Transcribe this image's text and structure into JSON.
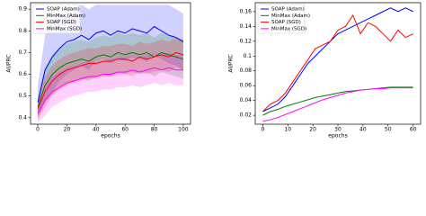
{
  "chart_data": [
    {
      "type": "line",
      "xlabel": "epochs",
      "ylabel": "AUPRC",
      "legend": "upper left",
      "x": [
        0,
        5,
        10,
        15,
        20,
        25,
        30,
        35,
        40,
        45,
        50,
        55,
        60,
        65,
        70,
        75,
        80,
        85,
        90,
        95,
        100
      ],
      "xlim": [
        -5,
        105
      ],
      "xticks": [
        0,
        20,
        40,
        60,
        80,
        100
      ],
      "ylim": [
        0.37,
        0.93
      ],
      "yticks": [
        0.4,
        0.5,
        0.6,
        0.7,
        0.8,
        0.9
      ],
      "series": [
        {
          "name": "SOAP (Adam)",
          "color": "#0000ff",
          "values": [
            0.47,
            0.62,
            0.68,
            0.72,
            0.75,
            0.76,
            0.78,
            0.76,
            0.79,
            0.8,
            0.78,
            0.8,
            0.79,
            0.81,
            0.8,
            0.79,
            0.82,
            0.8,
            0.78,
            0.77,
            0.75
          ],
          "upper": [
            0.55,
            0.78,
            0.85,
            0.87,
            0.9,
            0.9,
            0.92,
            0.9,
            0.92,
            0.92,
            0.92,
            0.92,
            0.92,
            0.92,
            0.92,
            0.92,
            0.92,
            0.92,
            0.92,
            0.9,
            0.88
          ],
          "lower": [
            0.4,
            0.48,
            0.52,
            0.57,
            0.6,
            0.62,
            0.64,
            0.62,
            0.66,
            0.67,
            0.65,
            0.67,
            0.66,
            0.68,
            0.67,
            0.66,
            0.69,
            0.67,
            0.65,
            0.64,
            0.62
          ]
        },
        {
          "name": "MinMax (Adam)",
          "color": "#008000",
          "values": [
            0.45,
            0.55,
            0.6,
            0.63,
            0.65,
            0.66,
            0.67,
            0.66,
            0.68,
            0.69,
            0.68,
            0.7,
            0.69,
            0.7,
            0.69,
            0.7,
            0.68,
            0.7,
            0.69,
            0.68,
            0.67
          ],
          "upper": [
            0.5,
            0.63,
            0.69,
            0.72,
            0.74,
            0.75,
            0.76,
            0.75,
            0.77,
            0.78,
            0.77,
            0.79,
            0.78,
            0.79,
            0.78,
            0.79,
            0.77,
            0.79,
            0.78,
            0.77,
            0.76
          ],
          "lower": [
            0.4,
            0.47,
            0.51,
            0.54,
            0.56,
            0.57,
            0.58,
            0.57,
            0.59,
            0.6,
            0.59,
            0.61,
            0.6,
            0.61,
            0.6,
            0.61,
            0.59,
            0.61,
            0.6,
            0.59,
            0.58
          ]
        },
        {
          "name": "SOAP (SGD)",
          "color": "#ff0000",
          "values": [
            0.44,
            0.52,
            0.57,
            0.6,
            0.62,
            0.63,
            0.64,
            0.65,
            0.65,
            0.66,
            0.66,
            0.67,
            0.67,
            0.66,
            0.68,
            0.67,
            0.68,
            0.69,
            0.68,
            0.7,
            0.69
          ],
          "upper": [
            0.49,
            0.59,
            0.64,
            0.67,
            0.69,
            0.7,
            0.71,
            0.72,
            0.72,
            0.73,
            0.73,
            0.74,
            0.74,
            0.73,
            0.75,
            0.74,
            0.75,
            0.76,
            0.75,
            0.77,
            0.76
          ],
          "lower": [
            0.39,
            0.45,
            0.5,
            0.53,
            0.55,
            0.56,
            0.57,
            0.58,
            0.58,
            0.59,
            0.59,
            0.6,
            0.6,
            0.59,
            0.61,
            0.6,
            0.61,
            0.62,
            0.61,
            0.63,
            0.62
          ]
        },
        {
          "name": "MinMax (SGD)",
          "color": "#ff00ff",
          "values": [
            0.42,
            0.48,
            0.52,
            0.54,
            0.56,
            0.57,
            0.58,
            0.59,
            0.59,
            0.6,
            0.6,
            0.61,
            0.61,
            0.62,
            0.61,
            0.62,
            0.63,
            0.62,
            0.63,
            0.62,
            0.62
          ],
          "upper": [
            0.47,
            0.55,
            0.59,
            0.61,
            0.63,
            0.64,
            0.65,
            0.66,
            0.66,
            0.67,
            0.67,
            0.68,
            0.68,
            0.69,
            0.68,
            0.69,
            0.7,
            0.69,
            0.7,
            0.69,
            0.69
          ],
          "lower": [
            0.38,
            0.41,
            0.45,
            0.47,
            0.49,
            0.5,
            0.51,
            0.52,
            0.52,
            0.53,
            0.53,
            0.54,
            0.54,
            0.55,
            0.54,
            0.55,
            0.56,
            0.55,
            0.56,
            0.55,
            0.55
          ]
        }
      ]
    },
    {
      "type": "line",
      "xlabel": "epochs",
      "ylabel": "AUPRC",
      "legend": "upper left",
      "x": [
        0,
        3,
        6,
        9,
        12,
        15,
        18,
        21,
        24,
        27,
        30,
        33,
        36,
        39,
        42,
        45,
        48,
        51,
        54,
        57,
        60
      ],
      "xlim": [
        -3,
        63
      ],
      "xticks": [
        0,
        10,
        20,
        30,
        40,
        50,
        60
      ],
      "ylim": [
        0.008,
        0.172
      ],
      "yticks": [
        0.02,
        0.04,
        0.06,
        0.08,
        0.1,
        0.12,
        0.14,
        0.16
      ],
      "series": [
        {
          "name": "SOAP (Adam)",
          "color": "#0000ff",
          "values": [
            0.025,
            0.03,
            0.035,
            0.045,
            0.06,
            0.075,
            0.09,
            0.1,
            0.11,
            0.12,
            0.13,
            0.135,
            0.14,
            0.145,
            0.15,
            0.155,
            0.16,
            0.165,
            0.16,
            0.165,
            0.16
          ]
        },
        {
          "name": "MinMax (Adam)",
          "color": "#008000",
          "values": [
            0.02,
            0.025,
            0.028,
            0.032,
            0.035,
            0.038,
            0.041,
            0.044,
            0.046,
            0.048,
            0.05,
            0.052,
            0.053,
            0.054,
            0.055,
            0.056,
            0.057,
            0.058,
            0.058,
            0.058,
            0.058
          ]
        },
        {
          "name": "SOAP (SGD)",
          "color": "#ff0000",
          "values": [
            0.025,
            0.035,
            0.04,
            0.05,
            0.065,
            0.08,
            0.095,
            0.11,
            0.115,
            0.12,
            0.135,
            0.14,
            0.155,
            0.13,
            0.145,
            0.14,
            0.13,
            0.12,
            0.135,
            0.125,
            0.13
          ]
        },
        {
          "name": "MinMax (SGD)",
          "color": "#ff00ff",
          "values": [
            0.012,
            0.014,
            0.017,
            0.021,
            0.025,
            0.029,
            0.033,
            0.037,
            0.041,
            0.044,
            0.047,
            0.05,
            0.052,
            0.054,
            0.055,
            0.056,
            0.056,
            0.057,
            0.057,
            0.057,
            0.057
          ]
        }
      ]
    }
  ]
}
